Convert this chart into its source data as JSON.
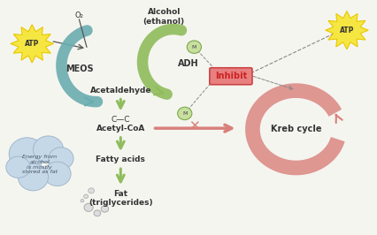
{
  "bg_color": "#f5f5f0",
  "atp_color": "#f5e642",
  "atp_outline": "#e8c800",
  "meos_arrow_color": "#6aacb0",
  "adh_arrow_color": "#8fbc5c",
  "krebs_color": "#d9807a",
  "inhibit_color": "#e88080",
  "inhibit_text_color": "#cc2222",
  "cloud_color": "#c5d8e8",
  "dot_color": "#7aaa4a",
  "dot_face": "#c8dfa0",
  "text_color": "#333333",
  "labels": {
    "atp_left": "ATP",
    "atp_right": "ATP",
    "o2": "O₂",
    "meos": "MEOS",
    "adh": "ADH",
    "alcohol": "Alcohol\n(ethanol)",
    "acetaldehyde": "Acetaldehyde",
    "cc": "C—C",
    "acetyl_coa": "Acetyl-CoA",
    "fatty_acids": "Fatty acids",
    "fat": "Fat\n(triglycerides)",
    "krebs": "Kreb cycle",
    "inhibit": "Inhibit",
    "cloud_text": "Energy from\nalcohol\nis mostly\nstored as fat"
  }
}
